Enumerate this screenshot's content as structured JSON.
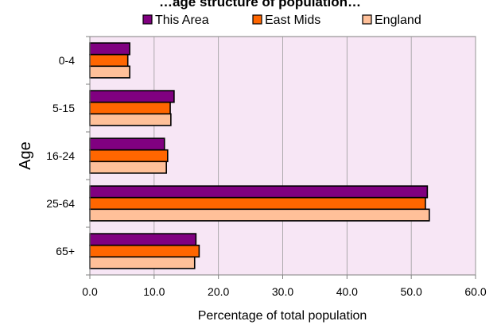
{
  "chart_data": {
    "type": "bar",
    "orientation": "horizontal",
    "title": "…age structure of population…",
    "xlabel": "Percentage of total population",
    "ylabel": "Age",
    "categories": [
      "0-4",
      "5-15",
      "16-24",
      "25-64",
      "65+"
    ],
    "series": [
      {
        "name": "This Area",
        "color": "#800080",
        "values": [
          6.2,
          13.1,
          11.6,
          52.5,
          16.5
        ]
      },
      {
        "name": "East Mids",
        "color": "#ff6600",
        "values": [
          5.9,
          12.5,
          12.1,
          52.2,
          17.0
        ]
      },
      {
        "name": "England",
        "color": "#ffc099",
        "values": [
          6.2,
          12.6,
          11.9,
          52.8,
          16.3
        ]
      }
    ],
    "xlim": [
      0,
      60
    ],
    "xticks": [
      "0.0",
      "10.0",
      "20.0",
      "30.0",
      "40.0",
      "50.0",
      "60.0"
    ],
    "grid": true,
    "legend_position": "top",
    "plot_background": "#f7e6f5"
  }
}
